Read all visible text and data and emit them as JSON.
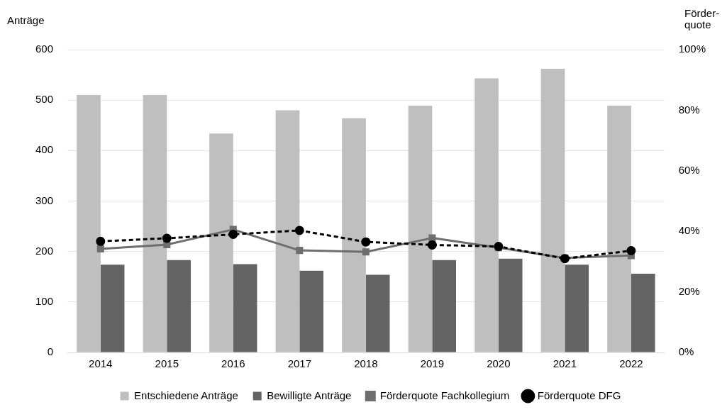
{
  "chart_data": {
    "type": "bar",
    "ylabel": "Anträge",
    "y2label": "Förder-\nquote",
    "categories": [
      "2014",
      "2015",
      "2016",
      "2017",
      "2018",
      "2019",
      "2020",
      "2021",
      "2022"
    ],
    "series": [
      {
        "name": "Entschiedene Anträge",
        "color": "#bfbfbf",
        "values": [
          510,
          510,
          434,
          480,
          464,
          489,
          543,
          562,
          489
        ]
      },
      {
        "name": "Bewilligte Anträge",
        "color": "#636363",
        "values": [
          174,
          183,
          175,
          162,
          154,
          183,
          186,
          174,
          156
        ]
      },
      {
        "name": "Förderquote Fachkollegium",
        "type": "line",
        "axis": "y2",
        "color": "#6e6e6e",
        "marker": "square",
        "line_style": "solid",
        "values": [
          34.2,
          35.6,
          40.6,
          33.7,
          33.2,
          37.8,
          34.6,
          31.2,
          32
        ]
      },
      {
        "name": "Förderquote DFG",
        "type": "line",
        "axis": "y2",
        "color": "#000000",
        "marker": "circle",
        "line_style": "dashed",
        "values": [
          36.7,
          37.7,
          39,
          40.3,
          36.5,
          35.5,
          35,
          31,
          33.6
        ]
      }
    ],
    "ylim": [
      0,
      600
    ],
    "yticks": [
      0,
      100,
      200,
      300,
      400,
      500,
      600
    ],
    "y2lim": [
      0,
      100
    ],
    "y2ticks": [
      {
        "value": 0,
        "label": "0%"
      },
      {
        "value": 20,
        "label": "20%"
      },
      {
        "value": 40,
        "label": "40%"
      },
      {
        "value": 60,
        "label": "60%"
      },
      {
        "value": 80,
        "label": "80%"
      },
      {
        "value": 100,
        "label": "100%"
      }
    ],
    "grid": "y",
    "legend": "bottom"
  }
}
